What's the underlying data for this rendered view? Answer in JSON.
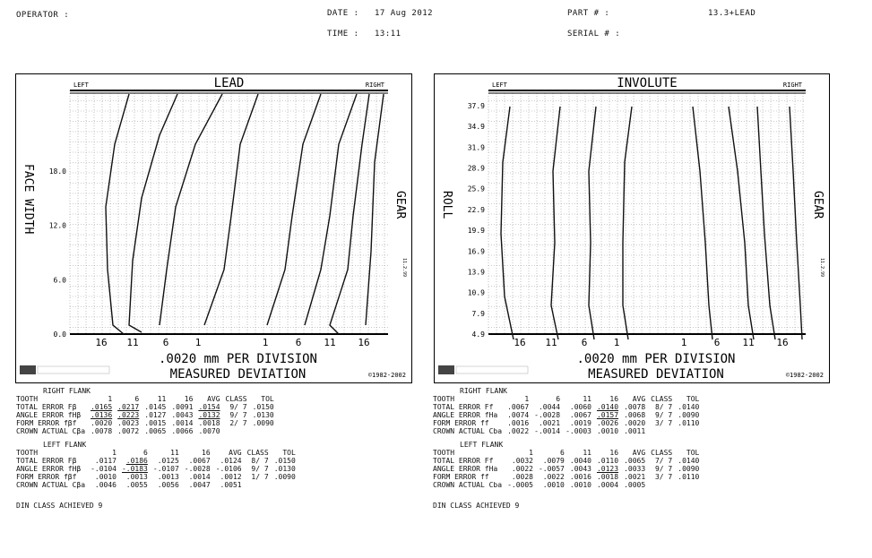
{
  "header": {
    "operator_label": "OPERATOR :",
    "date_label": "DATE :",
    "date_value": "17 Aug 2012",
    "time_label": "TIME :",
    "time_value": "13:11",
    "part_label": "PART # :",
    "part_value": "13.3+LEAD",
    "serial_label": "SERIAL # :"
  },
  "lead_chart": {
    "title": "LEAD",
    "left": "LEFT",
    "right": "RIGHT",
    "left_axis_label": "FACE WIDTH",
    "right_axis_label": "GEAR",
    "y_ticks": [
      "18.0",
      "12.0",
      "6.0",
      "0.0"
    ],
    "x_ticks": [
      "16",
      "11",
      "6",
      "1",
      "1",
      "6",
      "11",
      "16"
    ],
    "scale": ".0020 mm PER DIVISION",
    "footer": "MEASURED DEVIATION",
    "copyright": "©1982-2002",
    "side_mark": "11.2.99"
  },
  "involute_chart": {
    "title": "INVOLUTE",
    "left": "LEFT",
    "right": "RIGHT",
    "left_axis_label": "ROLL",
    "right_axis_label": "GEAR",
    "y_ticks": [
      "37.9",
      "34.9",
      "31.9",
      "28.9",
      "25.9",
      "22.9",
      "19.9",
      "16.9",
      "13.9",
      "10.9",
      "7.9",
      "4.9"
    ],
    "x_ticks": [
      "16",
      "11",
      "6",
      "1",
      "1",
      "6",
      "11",
      "16"
    ],
    "scale": ".0020 mm PER DIVISION",
    "footer": "MEASURED DEVIATION",
    "copyright": "©1982-2002",
    "side_mark": "11.2.99"
  },
  "lead_table": {
    "right_flank_title": "RIGHT FLANK",
    "left_flank_title": "LEFT FLANK",
    "columns": [
      "TOOTH",
      "1",
      "6",
      "11",
      "16",
      "AVG",
      "CLASS",
      "TOL"
    ],
    "right_rows": [
      [
        "TOTAL ERROR Fβ",
        ".0165",
        ".0217",
        ".0145",
        ".0091",
        ".0154",
        "9/ 7",
        ".0150"
      ],
      [
        "ANGLE ERROR fHβ",
        ".0136",
        ".0223",
        ".0127",
        ".0043",
        ".0132",
        "9/ 7",
        ".0130"
      ],
      [
        "FORM ERROR fβf",
        ".0020",
        ".0023",
        ".0015",
        ".0014",
        ".0018",
        "2/ 7",
        ".0090"
      ],
      [
        "CROWN ACTUAL Cβa",
        ".0078",
        ".0072",
        ".0065",
        ".0066",
        ".0070",
        "",
        ""
      ]
    ],
    "left_rows": [
      [
        "TOTAL ERROR Fβ",
        ".0117",
        ".0186",
        ".0125",
        ".0067",
        ".0124",
        "8/ 7",
        ".0150"
      ],
      [
        "ANGLE ERROR fHβ",
        "-.0104",
        "-.0183",
        "-.0107",
        "-.0028",
        "-.0106",
        "9/ 7",
        ".0130"
      ],
      [
        "FORM ERROR fβf",
        ".0010",
        ".0013",
        ".0013",
        ".0014",
        ".0012",
        "1/ 7",
        ".0090"
      ],
      [
        "CROWN ACTUAL Cβa",
        ".0046",
        ".0055",
        ".0056",
        ".0047",
        ".0051",
        "",
        ""
      ]
    ],
    "din": "DIN CLASS ACHIEVED 9"
  },
  "involute_table": {
    "right_flank_title": "RIGHT FLANK",
    "left_flank_title": "LEFT FLANK",
    "columns": [
      "TOOTH",
      "1",
      "6",
      "11",
      "16",
      "AVG",
      "CLASS",
      "TOL"
    ],
    "right_rows": [
      [
        "TOTAL ERROR Ff",
        ".0067",
        ".0044",
        ".0060",
        ".0140",
        ".0078",
        "8/ 7",
        ".0140"
      ],
      [
        "ANGLE ERROR fHa",
        ".0074",
        "-.0028",
        ".0067",
        ".0157",
        ".0068",
        "9/ 7",
        ".0090"
      ],
      [
        "FORM ERROR ff",
        ".0016",
        ".0021",
        ".0019",
        ".0026",
        ".0020",
        "3/ 7",
        ".0110"
      ],
      [
        "CROWN ACTUAL Cba",
        ".0022",
        "-.0014",
        "-.0003",
        ".0010",
        ".0011",
        "",
        ""
      ]
    ],
    "left_rows": [
      [
        "TOTAL ERROR Ff",
        ".0032",
        ".0079",
        ".0040",
        ".0110",
        ".0065",
        "7/ 7",
        ".0140"
      ],
      [
        "ANGLE ERROR fHa",
        ".0022",
        "-.0057",
        ".0043",
        ".0123",
        ".0033",
        "9/ 7",
        ".0090"
      ],
      [
        "FORM ERROR ff",
        ".0028",
        ".0022",
        ".0016",
        ".0018",
        ".0021",
        "3/ 7",
        ".0110"
      ],
      [
        "CROWN ACTUAL Cba",
        "-.0005",
        ".0010",
        ".0010",
        ".0004",
        ".0005",
        "",
        ""
      ]
    ],
    "din": "DIN CLASS ACHIEVED 9"
  }
}
